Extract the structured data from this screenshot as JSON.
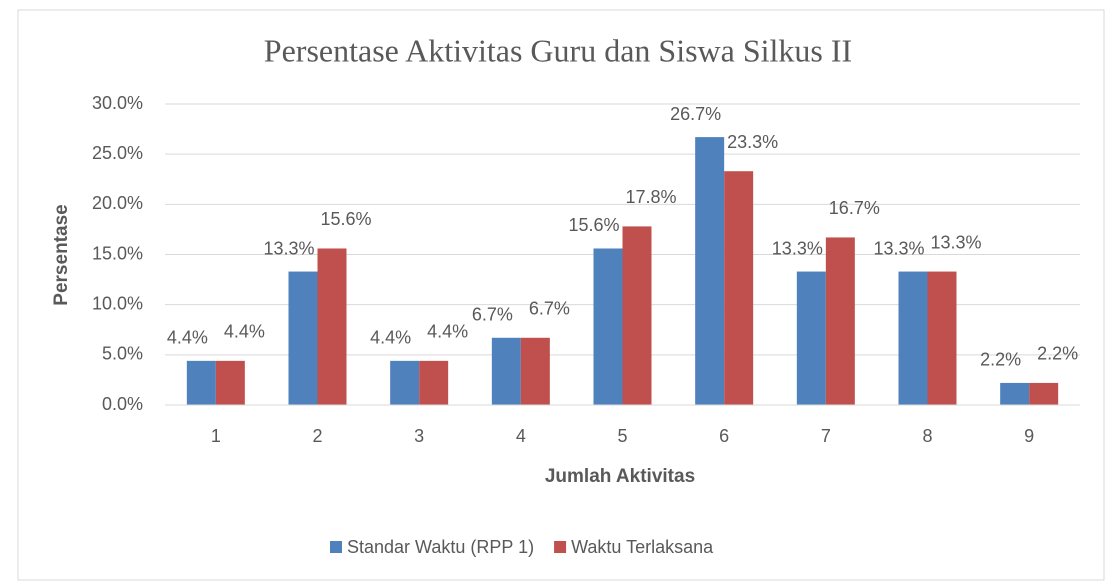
{
  "chart_data": {
    "type": "bar",
    "title": "Persentase Aktivitas Guru dan Siswa Silkus II",
    "x_label": "Jumlah Aktivitas",
    "y_label": "Persentase",
    "categories": [
      "1",
      "2",
      "3",
      "4",
      "5",
      "6",
      "7",
      "8",
      "9"
    ],
    "series": [
      {
        "name": "Standar Waktu (RPP 1)",
        "color": "#4f81bd",
        "values": [
          4.4,
          13.3,
          4.4,
          6.7,
          15.6,
          26.7,
          13.3,
          13.3,
          2.2
        ],
        "value_labels": [
          "4.4%",
          "13.3%",
          "4.4%",
          "6.7%",
          "15.6%",
          "26.7%",
          "13.3%",
          "13.3%",
          "2.2%"
        ]
      },
      {
        "name": "Waktu Terlaksana",
        "color": "#c0504d",
        "values": [
          4.4,
          15.6,
          4.4,
          6.7,
          17.8,
          23.3,
          16.7,
          13.3,
          2.2
        ],
        "value_labels": [
          "4.4%",
          "15.6%",
          "4.4%",
          "6.7%",
          "17.8%",
          "23.3%",
          "16.7%",
          "13.3%",
          "2.2%"
        ]
      }
    ],
    "ylim": [
      0,
      30
    ],
    "yticks": [
      {
        "value": 0,
        "label": "0.0%"
      },
      {
        "value": 5,
        "label": "5.0%"
      },
      {
        "value": 10,
        "label": "10.0%"
      },
      {
        "value": 15,
        "label": "15.0%"
      },
      {
        "value": 20,
        "label": "20.0%"
      },
      {
        "value": 25,
        "label": "25.0%"
      },
      {
        "value": 30,
        "label": "30.0%"
      }
    ],
    "grid": true,
    "legend": "bottom"
  }
}
